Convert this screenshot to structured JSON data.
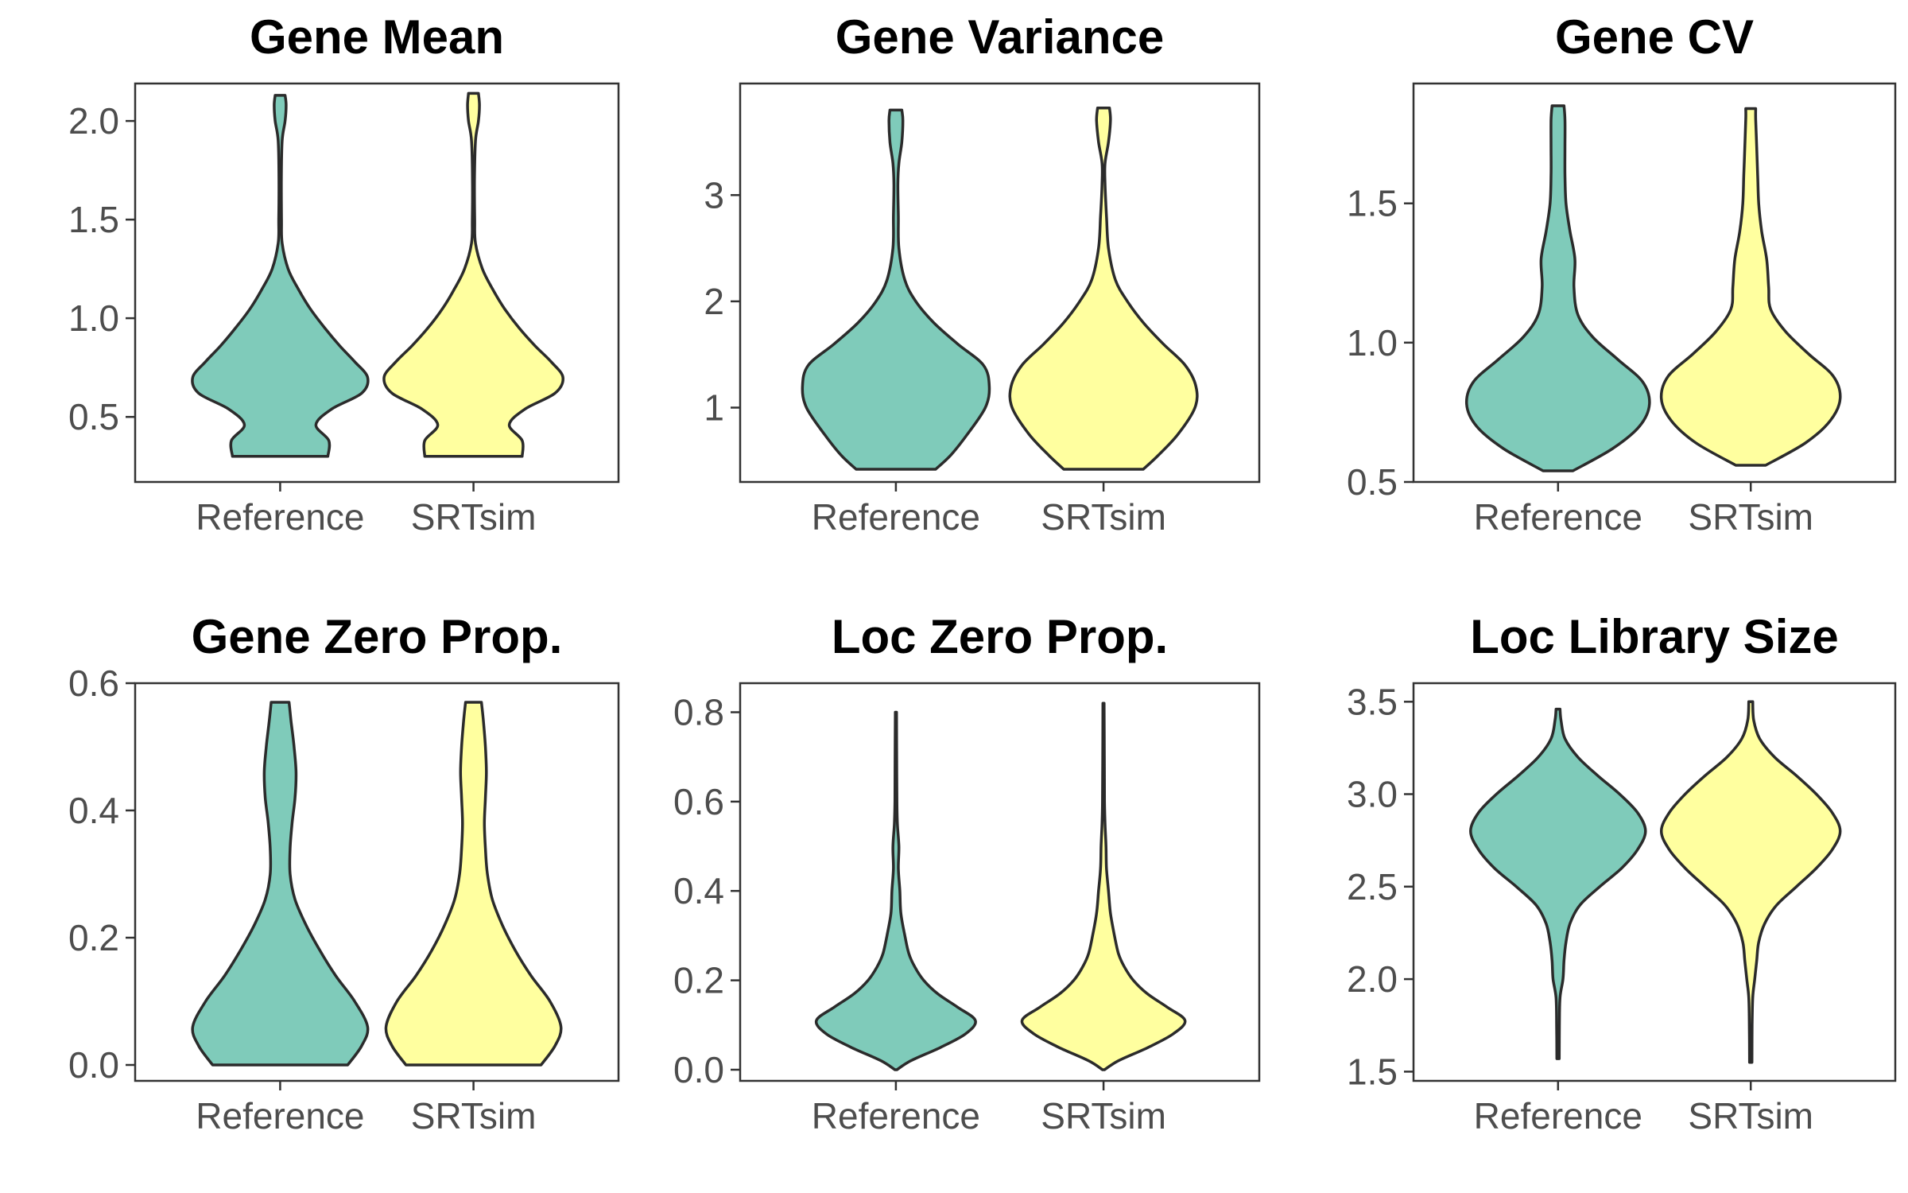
{
  "colors": {
    "Reference": "#7fcbba",
    "SRTsim": "#ffff9f"
  },
  "chart_data": [
    {
      "type": "violin",
      "title": "Gene Mean",
      "categories": [
        "Reference",
        "SRTsim"
      ],
      "ylim": [
        0.17,
        2.19
      ],
      "yticks": [
        0.5,
        1.0,
        1.5,
        2.0
      ],
      "ytick_labels": [
        "0.5",
        "1.0",
        "1.5",
        "2.0"
      ],
      "series": [
        {
          "name": "Reference",
          "range": [
            0.3,
            2.13
          ],
          "density": [
            [
              0.3,
              0.48
            ],
            [
              0.38,
              0.49
            ],
            [
              0.46,
              0.36
            ],
            [
              0.54,
              0.52
            ],
            [
              0.62,
              0.82
            ],
            [
              0.7,
              0.88
            ],
            [
              0.78,
              0.75
            ],
            [
              0.86,
              0.6
            ],
            [
              0.95,
              0.45
            ],
            [
              1.05,
              0.3
            ],
            [
              1.15,
              0.18
            ],
            [
              1.25,
              0.08
            ],
            [
              1.38,
              0.02
            ],
            [
              1.5,
              0.014
            ],
            [
              1.7,
              0.012
            ],
            [
              1.9,
              0.02
            ],
            [
              2.0,
              0.05
            ],
            [
              2.08,
              0.06
            ],
            [
              2.13,
              0.05
            ]
          ]
        },
        {
          "name": "SRTsim",
          "range": [
            0.3,
            2.14
          ],
          "density": [
            [
              0.3,
              0.49
            ],
            [
              0.38,
              0.49
            ],
            [
              0.46,
              0.36
            ],
            [
              0.54,
              0.52
            ],
            [
              0.62,
              0.82
            ],
            [
              0.7,
              0.9
            ],
            [
              0.78,
              0.78
            ],
            [
              0.86,
              0.62
            ],
            [
              0.95,
              0.46
            ],
            [
              1.05,
              0.31
            ],
            [
              1.15,
              0.19
            ],
            [
              1.25,
              0.09
            ],
            [
              1.38,
              0.02
            ],
            [
              1.5,
              0.012
            ],
            [
              1.7,
              0.01
            ],
            [
              1.9,
              0.02
            ],
            [
              2.0,
              0.05
            ],
            [
              2.08,
              0.06
            ],
            [
              2.14,
              0.05
            ]
          ]
        }
      ]
    },
    {
      "type": "violin",
      "title": "Gene Variance",
      "categories": [
        "Reference",
        "SRTsim"
      ],
      "ylim": [
        0.3,
        4.05
      ],
      "yticks": [
        1,
        2,
        3
      ],
      "ytick_labels": [
        "1",
        "2",
        "3"
      ],
      "series": [
        {
          "name": "Reference",
          "range": [
            0.42,
            3.8
          ],
          "density": [
            [
              0.42,
              0.4
            ],
            [
              0.55,
              0.55
            ],
            [
              0.75,
              0.72
            ],
            [
              1.0,
              0.9
            ],
            [
              1.2,
              0.94
            ],
            [
              1.4,
              0.88
            ],
            [
              1.6,
              0.62
            ],
            [
              1.8,
              0.38
            ],
            [
              2.0,
              0.2
            ],
            [
              2.2,
              0.09
            ],
            [
              2.5,
              0.03
            ],
            [
              2.8,
              0.025
            ],
            [
              3.1,
              0.02
            ],
            [
              3.3,
              0.03
            ],
            [
              3.5,
              0.06
            ],
            [
              3.7,
              0.07
            ],
            [
              3.8,
              0.06
            ]
          ]
        },
        {
          "name": "SRTsim",
          "range": [
            0.42,
            3.82
          ],
          "density": [
            [
              0.42,
              0.4
            ],
            [
              0.55,
              0.55
            ],
            [
              0.75,
              0.75
            ],
            [
              1.0,
              0.92
            ],
            [
              1.2,
              0.93
            ],
            [
              1.4,
              0.82
            ],
            [
              1.6,
              0.6
            ],
            [
              1.8,
              0.4
            ],
            [
              2.0,
              0.24
            ],
            [
              2.2,
              0.12
            ],
            [
              2.5,
              0.05
            ],
            [
              2.8,
              0.03
            ],
            [
              3.1,
              0.015
            ],
            [
              3.3,
              0.015
            ],
            [
              3.5,
              0.05
            ],
            [
              3.7,
              0.07
            ],
            [
              3.82,
              0.06
            ]
          ]
        }
      ]
    },
    {
      "type": "violin",
      "title": "Gene CV",
      "categories": [
        "Reference",
        "SRTsim"
      ],
      "ylim": [
        0.5,
        1.93
      ],
      "yticks": [
        0.5,
        1.0,
        1.5
      ],
      "ytick_labels": [
        "0.5",
        "1.0",
        "1.5"
      ],
      "series": [
        {
          "name": "Reference",
          "range": [
            0.54,
            1.85
          ],
          "density": [
            [
              0.54,
              0.15
            ],
            [
              0.62,
              0.55
            ],
            [
              0.7,
              0.82
            ],
            [
              0.78,
              0.92
            ],
            [
              0.86,
              0.85
            ],
            [
              0.94,
              0.6
            ],
            [
              1.02,
              0.35
            ],
            [
              1.1,
              0.2
            ],
            [
              1.2,
              0.16
            ],
            [
              1.3,
              0.17
            ],
            [
              1.4,
              0.12
            ],
            [
              1.5,
              0.08
            ],
            [
              1.6,
              0.07
            ],
            [
              1.7,
              0.07
            ],
            [
              1.8,
              0.07
            ],
            [
              1.85,
              0.06
            ]
          ]
        },
        {
          "name": "SRTsim",
          "range": [
            0.56,
            1.84
          ],
          "density": [
            [
              0.56,
              0.15
            ],
            [
              0.64,
              0.55
            ],
            [
              0.72,
              0.8
            ],
            [
              0.8,
              0.9
            ],
            [
              0.88,
              0.83
            ],
            [
              0.96,
              0.58
            ],
            [
              1.04,
              0.35
            ],
            [
              1.12,
              0.2
            ],
            [
              1.2,
              0.18
            ],
            [
              1.3,
              0.16
            ],
            [
              1.4,
              0.11
            ],
            [
              1.5,
              0.08
            ],
            [
              1.6,
              0.07
            ],
            [
              1.7,
              0.06
            ],
            [
              1.8,
              0.05
            ],
            [
              1.84,
              0.05
            ]
          ]
        }
      ]
    },
    {
      "type": "violin",
      "title": "Gene Zero Prop.",
      "categories": [
        "Reference",
        "SRTsim"
      ],
      "ylim": [
        -0.025,
        0.6
      ],
      "yticks": [
        0.0,
        0.2,
        0.4,
        0.6
      ],
      "ytick_labels": [
        "0.0",
        "0.2",
        "0.4",
        "0.6"
      ],
      "series": [
        {
          "name": "Reference",
          "range": [
            0.0,
            0.57
          ],
          "density": [
            [
              0.0,
              0.68
            ],
            [
              0.03,
              0.82
            ],
            [
              0.06,
              0.88
            ],
            [
              0.1,
              0.75
            ],
            [
              0.14,
              0.56
            ],
            [
              0.18,
              0.4
            ],
            [
              0.22,
              0.26
            ],
            [
              0.26,
              0.15
            ],
            [
              0.3,
              0.1
            ],
            [
              0.34,
              0.1
            ],
            [
              0.38,
              0.12
            ],
            [
              0.42,
              0.15
            ],
            [
              0.46,
              0.16
            ],
            [
              0.5,
              0.14
            ],
            [
              0.54,
              0.11
            ],
            [
              0.57,
              0.09
            ]
          ]
        },
        {
          "name": "SRTsim",
          "range": [
            0.0,
            0.57
          ],
          "density": [
            [
              0.0,
              0.68
            ],
            [
              0.03,
              0.82
            ],
            [
              0.06,
              0.88
            ],
            [
              0.1,
              0.77
            ],
            [
              0.14,
              0.58
            ],
            [
              0.18,
              0.42
            ],
            [
              0.22,
              0.29
            ],
            [
              0.26,
              0.19
            ],
            [
              0.3,
              0.14
            ],
            [
              0.34,
              0.12
            ],
            [
              0.38,
              0.11
            ],
            [
              0.42,
              0.12
            ],
            [
              0.46,
              0.13
            ],
            [
              0.5,
              0.12
            ],
            [
              0.54,
              0.1
            ],
            [
              0.57,
              0.08
            ]
          ]
        }
      ]
    },
    {
      "type": "violin",
      "title": "Loc Zero Prop.",
      "categories": [
        "Reference",
        "SRTsim"
      ],
      "ylim": [
        -0.025,
        0.865
      ],
      "yticks": [
        0.0,
        0.2,
        0.4,
        0.6,
        0.8
      ],
      "ytick_labels": [
        "0.0",
        "0.2",
        "0.4",
        "0.6",
        "0.8"
      ],
      "series": [
        {
          "name": "Reference",
          "range": [
            0.0,
            0.8
          ],
          "density": [
            [
              0.0,
              0.01
            ],
            [
              0.02,
              0.15
            ],
            [
              0.05,
              0.45
            ],
            [
              0.08,
              0.7
            ],
            [
              0.11,
              0.8
            ],
            [
              0.14,
              0.62
            ],
            [
              0.17,
              0.42
            ],
            [
              0.2,
              0.28
            ],
            [
              0.23,
              0.19
            ],
            [
              0.26,
              0.13
            ],
            [
              0.3,
              0.09
            ],
            [
              0.35,
              0.05
            ],
            [
              0.4,
              0.04
            ],
            [
              0.45,
              0.025
            ],
            [
              0.5,
              0.03
            ],
            [
              0.55,
              0.015
            ],
            [
              0.6,
              0.01
            ],
            [
              0.7,
              0.008
            ],
            [
              0.8,
              0.006
            ]
          ]
        },
        {
          "name": "SRTsim",
          "range": [
            0.0,
            0.82
          ],
          "density": [
            [
              0.0,
              0.01
            ],
            [
              0.02,
              0.15
            ],
            [
              0.05,
              0.45
            ],
            [
              0.08,
              0.7
            ],
            [
              0.11,
              0.82
            ],
            [
              0.14,
              0.64
            ],
            [
              0.17,
              0.44
            ],
            [
              0.2,
              0.3
            ],
            [
              0.23,
              0.21
            ],
            [
              0.26,
              0.15
            ],
            [
              0.3,
              0.11
            ],
            [
              0.35,
              0.07
            ],
            [
              0.4,
              0.05
            ],
            [
              0.45,
              0.03
            ],
            [
              0.5,
              0.025
            ],
            [
              0.55,
              0.015
            ],
            [
              0.6,
              0.01
            ],
            [
              0.7,
              0.008
            ],
            [
              0.82,
              0.006
            ]
          ]
        }
      ]
    },
    {
      "type": "violin",
      "title": "Loc Library Size",
      "categories": [
        "Reference",
        "SRTsim"
      ],
      "ylim": [
        1.45,
        3.6
      ],
      "yticks": [
        1.5,
        2.0,
        2.5,
        3.0,
        3.5
      ],
      "ytick_labels": [
        "1.5",
        "2.0",
        "2.5",
        "3.0",
        "3.5"
      ],
      "series": [
        {
          "name": "Reference",
          "range": [
            1.57,
            3.46
          ],
          "density": [
            [
              1.57,
              0.012
            ],
            [
              1.75,
              0.014
            ],
            [
              1.9,
              0.02
            ],
            [
              2.0,
              0.05
            ],
            [
              2.1,
              0.06
            ],
            [
              2.2,
              0.08
            ],
            [
              2.3,
              0.12
            ],
            [
              2.4,
              0.22
            ],
            [
              2.5,
              0.42
            ],
            [
              2.6,
              0.64
            ],
            [
              2.7,
              0.8
            ],
            [
              2.8,
              0.88
            ],
            [
              2.9,
              0.8
            ],
            [
              3.0,
              0.62
            ],
            [
              3.1,
              0.4
            ],
            [
              3.2,
              0.2
            ],
            [
              3.3,
              0.07
            ],
            [
              3.4,
              0.03
            ],
            [
              3.46,
              0.02
            ]
          ]
        },
        {
          "name": "SRTsim",
          "range": [
            1.55,
            3.5
          ],
          "density": [
            [
              1.55,
              0.012
            ],
            [
              1.75,
              0.014
            ],
            [
              1.9,
              0.02
            ],
            [
              2.0,
              0.04
            ],
            [
              2.1,
              0.06
            ],
            [
              2.2,
              0.08
            ],
            [
              2.3,
              0.14
            ],
            [
              2.4,
              0.26
            ],
            [
              2.5,
              0.46
            ],
            [
              2.6,
              0.66
            ],
            [
              2.7,
              0.82
            ],
            [
              2.8,
              0.9
            ],
            [
              2.9,
              0.82
            ],
            [
              3.0,
              0.66
            ],
            [
              3.1,
              0.46
            ],
            [
              3.2,
              0.24
            ],
            [
              3.3,
              0.09
            ],
            [
              3.4,
              0.03
            ],
            [
              3.5,
              0.02
            ]
          ]
        }
      ]
    }
  ]
}
